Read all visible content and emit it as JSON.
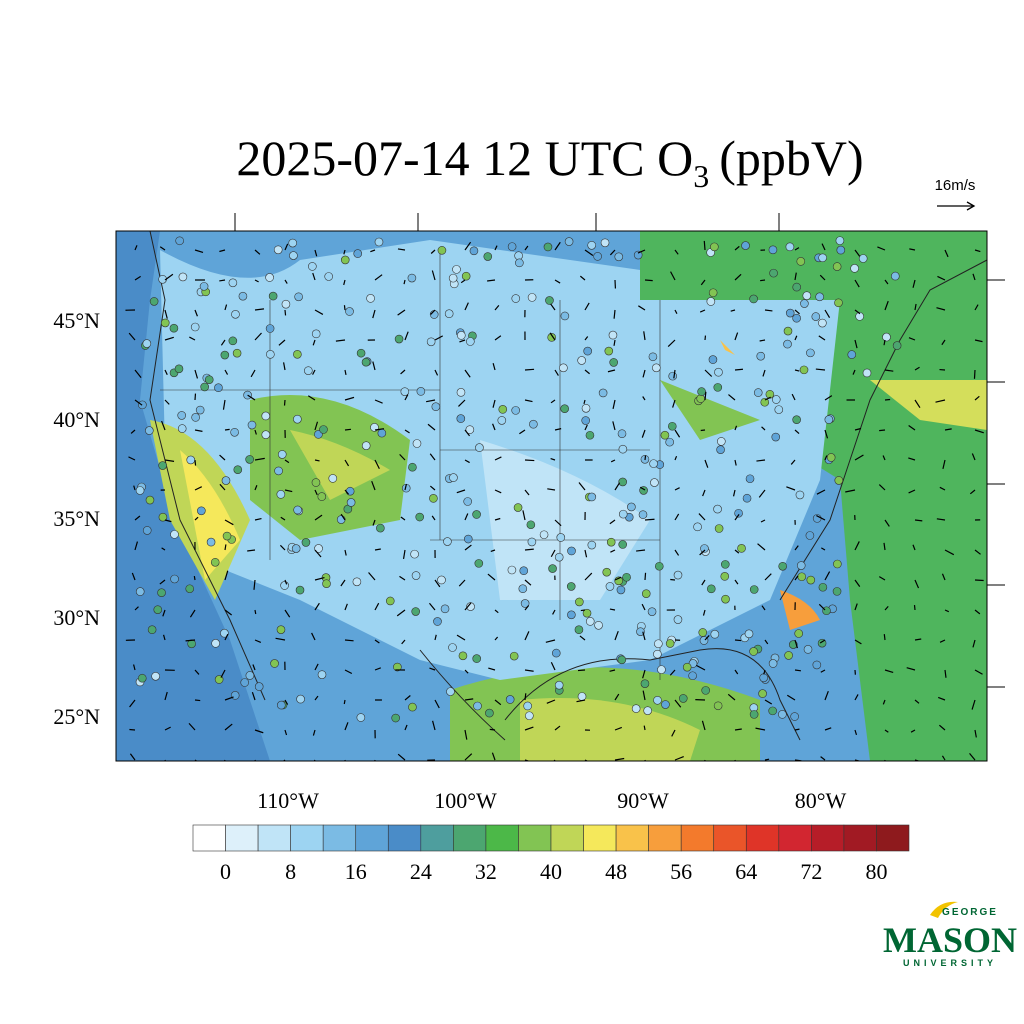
{
  "header": {
    "title": {
      "main": "2025-07-14 12 UTC O",
      "subscript": "3",
      "unit": "(ppbV)"
    }
  },
  "vector_key": {
    "label": "16m/s"
  },
  "map": {
    "lat_labels": [
      "45°N",
      "40°N",
      "35°N",
      "30°N",
      "25°N"
    ],
    "lon_labels": [
      "110°W",
      "100°W",
      "90°W",
      "80°W"
    ]
  },
  "colorbar": {
    "labels": [
      0,
      8,
      16,
      24,
      32,
      40,
      48,
      56,
      64,
      72,
      80
    ],
    "colors": [
      "#ffffff",
      "#ddf0fa",
      "#c0e4f7",
      "#9dd4f2",
      "#7bbbe4",
      "#5fa4d8",
      "#4a8cc8",
      "#4e9e9e",
      "#4ca670",
      "#4cb848",
      "#82c453",
      "#c0d657",
      "#f5e85b",
      "#f9c24a",
      "#f79e3c",
      "#f37a2c",
      "#ea5529",
      "#df3428",
      "#d22630",
      "#b61d28",
      "#a11a23",
      "#8e1a1d"
    ]
  },
  "logo": {
    "top": "GEORGE",
    "main": "MASON",
    "bottom": "UNIVERSITY"
  }
}
